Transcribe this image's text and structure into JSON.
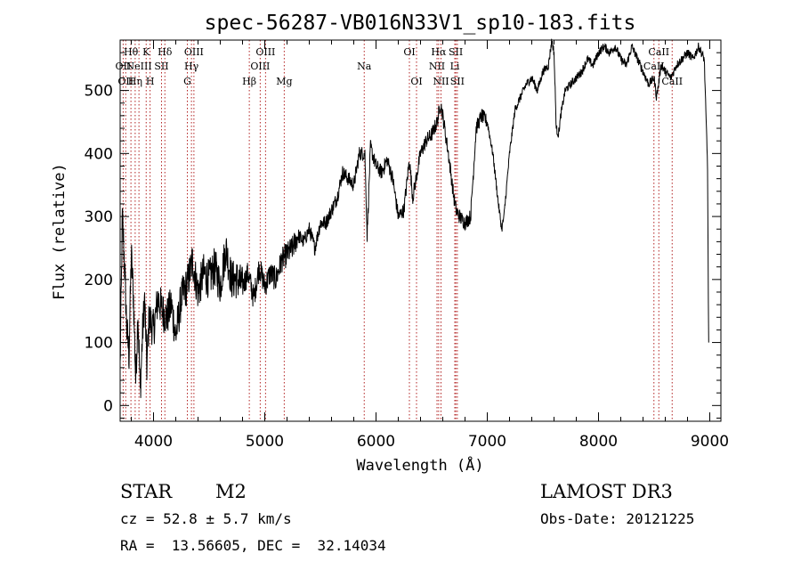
{
  "chart_data": {
    "type": "line",
    "title": "spec-56287-VB016N33V1_sp10-183.fits",
    "xlabel": "Wavelength (Å)",
    "ylabel": "Flux (relative)",
    "xlim": [
      3700,
      9100
    ],
    "ylim": [
      -25,
      580
    ],
    "xticks": [
      4000,
      5000,
      6000,
      7000,
      8000,
      9000
    ],
    "yticks": [
      0,
      100,
      200,
      300,
      400,
      500
    ],
    "series": [
      {
        "name": "flux",
        "x": [
          3700,
          3720,
          3740,
          3760,
          3780,
          3800,
          3820,
          3840,
          3860,
          3880,
          3900,
          3920,
          3940,
          3960,
          3980,
          4000,
          4040,
          4080,
          4120,
          4160,
          4200,
          4250,
          4300,
          4350,
          4400,
          4450,
          4500,
          4550,
          4600,
          4650,
          4700,
          4750,
          4800,
          4850,
          4900,
          4950,
          5000,
          5050,
          5100,
          5150,
          5200,
          5250,
          5300,
          5350,
          5400,
          5450,
          5500,
          5550,
          5600,
          5650,
          5700,
          5750,
          5800,
          5850,
          5900,
          5920,
          5950,
          6000,
          6050,
          6100,
          6150,
          6200,
          6250,
          6300,
          6330,
          6350,
          6400,
          6450,
          6500,
          6550,
          6580,
          6600,
          6650,
          6700,
          6720,
          6750,
          6800,
          6850,
          6900,
          6950,
          7000,
          7050,
          7100,
          7130,
          7150,
          7200,
          7250,
          7300,
          7350,
          7400,
          7450,
          7500,
          7550,
          7580,
          7600,
          7620,
          7640,
          7660,
          7680,
          7700,
          7750,
          7800,
          7850,
          7900,
          7950,
          8000,
          8050,
          8100,
          8150,
          8200,
          8250,
          8300,
          8350,
          8400,
          8450,
          8500,
          8520,
          8540,
          8560,
          8600,
          8650,
          8700,
          8750,
          8800,
          8850,
          8900,
          8950,
          8980,
          8990
        ],
        "values": [
          60,
          300,
          220,
          120,
          80,
          240,
          170,
          40,
          150,
          20,
          110,
          170,
          60,
          140,
          130,
          120,
          170,
          150,
          140,
          160,
          110,
          170,
          190,
          230,
          180,
          210,
          200,
          220,
          190,
          250,
          200,
          200,
          190,
          210,
          170,
          220,
          190,
          210,
          200,
          230,
          240,
          250,
          270,
          260,
          280,
          250,
          290,
          290,
          310,
          330,
          370,
          360,
          350,
          400,
          400,
          270,
          410,
          380,
          370,
          390,
          360,
          300,
          310,
          390,
          330,
          350,
          400,
          420,
          430,
          450,
          480,
          460,
          400,
          330,
          310,
          300,
          290,
          300,
          440,
          460,
          450,
          400,
          320,
          280,
          300,
          400,
          470,
          490,
          510,
          520,
          500,
          530,
          540,
          580,
          560,
          440,
          430,
          460,
          480,
          500,
          510,
          520,
          530,
          550,
          540,
          560,
          570,
          560,
          570,
          550,
          540,
          570,
          550,
          530,
          510,
          520,
          490,
          510,
          540,
          530,
          520,
          540,
          550,
          560,
          550,
          570,
          550,
          380,
          100
        ]
      }
    ],
    "lines": [
      {
        "wave": 3727,
        "label": "OII",
        "row": 2
      },
      {
        "wave": 3750,
        "label": "OII",
        "row": 3
      },
      {
        "wave": 3797,
        "label": "Hθ",
        "row": 1
      },
      {
        "wave": 3835,
        "label": "Hη",
        "row": 3
      },
      {
        "wave": 3869,
        "label": "NeIII",
        "row": 2
      },
      {
        "wave": 3934,
        "label": "K",
        "row": 1
      },
      {
        "wave": 3969,
        "label": "H",
        "row": 3
      },
      {
        "wave": 4072,
        "label": "SII",
        "row": 2
      },
      {
        "wave": 4102,
        "label": "Hδ",
        "row": 1
      },
      {
        "wave": 4304,
        "label": "G",
        "row": 3
      },
      {
        "wave": 4341,
        "label": "Hγ",
        "row": 2
      },
      {
        "wave": 4363,
        "label": "OIII",
        "row": 1
      },
      {
        "wave": 4861,
        "label": "Hβ",
        "row": 3
      },
      {
        "wave": 4959,
        "label": "OIII",
        "row": 2
      },
      {
        "wave": 5007,
        "label": "OIII",
        "row": 1
      },
      {
        "wave": 5175,
        "label": "Mg",
        "row": 3
      },
      {
        "wave": 5894,
        "label": "Na",
        "row": 2
      },
      {
        "wave": 6300,
        "label": "OI",
        "row": 1
      },
      {
        "wave": 6364,
        "label": "OI",
        "row": 3
      },
      {
        "wave": 6548,
        "label": "NII",
        "row": 2
      },
      {
        "wave": 6563,
        "label": "Hα",
        "row": 1
      },
      {
        "wave": 6584,
        "label": "NII",
        "row": 3
      },
      {
        "wave": 6708,
        "label": "Li",
        "row": 2
      },
      {
        "wave": 6717,
        "label": "SII",
        "row": 1
      },
      {
        "wave": 6731,
        "label": "SII",
        "row": 3
      },
      {
        "wave": 8498,
        "label": "CaII",
        "row": 2
      },
      {
        "wave": 8542,
        "label": "CaII",
        "row": 1
      },
      {
        "wave": 8662,
        "label": "CaII",
        "row": 3
      }
    ],
    "colors": {
      "spectrum": "#000000",
      "line_marker": "#b22222"
    }
  },
  "info": {
    "object_class": "STAR",
    "subclass": "M2",
    "survey": "LAMOST DR3",
    "redshift": "cz = 52.8 ± 5.7 km/s",
    "obs_date": "Obs-Date: 20121225",
    "coords": "RA =  13.56605, DEC =  32.14034"
  }
}
